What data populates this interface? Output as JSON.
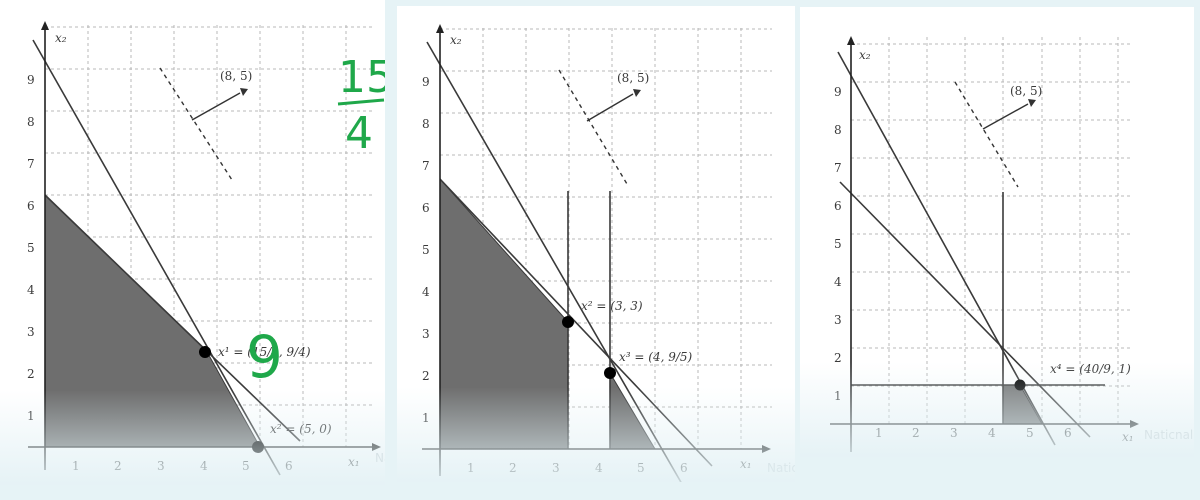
{
  "axes": {
    "x_label": "x₁",
    "y_label": "x₂",
    "watermark": "Naticnal"
  },
  "panel1": {
    "x_ticks": [
      "1",
      "2",
      "3",
      "4",
      "5",
      "6"
    ],
    "y_ticks": [
      "1",
      "2",
      "3",
      "4",
      "5",
      "6",
      "7",
      "8",
      "9"
    ],
    "direction_label": "(8, 5)",
    "point_a": "x¹ = (15/4, 9/4)",
    "point_b": "x² = (5, 0)",
    "note_fraction_num": "15",
    "note_fraction_den": "4",
    "note_digit": "9"
  },
  "panel2": {
    "x_ticks": [
      "1",
      "2",
      "3",
      "4",
      "5",
      "6"
    ],
    "y_ticks": [
      "1",
      "2",
      "3",
      "4",
      "5",
      "6",
      "7",
      "8",
      "9"
    ],
    "direction_label": "(8, 5)",
    "point_a": "x² = (3, 3)",
    "point_b": "x³ = (4, 9/5)"
  },
  "panel3": {
    "x_ticks": [
      "1",
      "2",
      "3",
      "4",
      "5",
      "6"
    ],
    "y_ticks": [
      "1",
      "2",
      "3",
      "4",
      "5",
      "6",
      "7",
      "8",
      "9"
    ],
    "direction_label": "(8, 5)",
    "point_a": "x⁴ = (40/9, 1)"
  },
  "colors": {
    "shade": "#6e6e6e",
    "ink": "#1a1a1a",
    "grid": "#b9b9b9",
    "note_green": "#1fa84a",
    "bg": "#e6f3f6"
  }
}
